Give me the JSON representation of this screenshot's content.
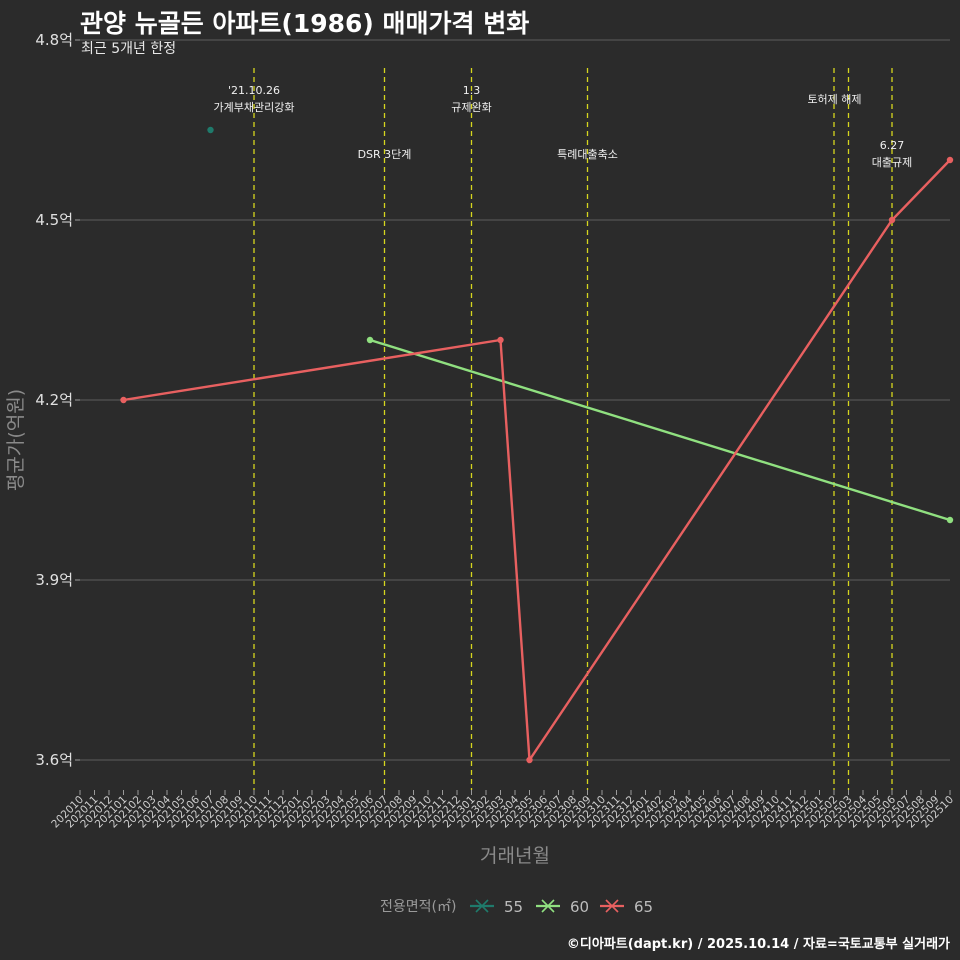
{
  "chart_data": {
    "type": "line",
    "title": "관양 뉴골든 아파트(1986) 매매가격 변화",
    "subtitle": "최근 5개년 한정",
    "xlabel": "거래년월",
    "ylabel": "평균가(억원)",
    "caption": "©디아파트(dapt.kr) / 2025.10.14 / 자료=국토교통부 실거래가",
    "ylim": [
      3.55,
      4.8
    ],
    "yticks": [
      3.6,
      3.9,
      4.2,
      4.5,
      4.8
    ],
    "ytick_labels": [
      "3.6억",
      "3.9억",
      "4.2억",
      "4.5억",
      "4.8억"
    ],
    "categories": [
      "202010",
      "202011",
      "202012",
      "202101",
      "202102",
      "202103",
      "202104",
      "202105",
      "202106",
      "202107",
      "202108",
      "202109",
      "202110",
      "202111",
      "202112",
      "202201",
      "202202",
      "202203",
      "202204",
      "202205",
      "202206",
      "202207",
      "202208",
      "202209",
      "202210",
      "202211",
      "202212",
      "202301",
      "202302",
      "202303",
      "202304",
      "202305",
      "202306",
      "202307",
      "202308",
      "202309",
      "202310",
      "202311",
      "202312",
      "202401",
      "202402",
      "202403",
      "202404",
      "202405",
      "202406",
      "202407",
      "202408",
      "202409",
      "202410",
      "202411",
      "202412",
      "202501",
      "202502",
      "202503",
      "202504",
      "202505",
      "202506",
      "202507",
      "202508",
      "202509",
      "202510"
    ],
    "legend_title": "전용면적(㎡)",
    "legend_position": "bottom",
    "series": [
      {
        "name": "55",
        "color": "#1f7a6b",
        "points": [
          [
            "202107",
            4.65
          ]
        ]
      },
      {
        "name": "60",
        "color": "#90e080",
        "points": [
          [
            "202206",
            4.3
          ],
          [
            "202510",
            4.0
          ]
        ]
      },
      {
        "name": "65",
        "color": "#e86060",
        "points": [
          [
            "202101",
            4.2
          ],
          [
            "202303",
            4.3
          ],
          [
            "202305",
            3.6
          ],
          [
            "202506",
            4.5
          ],
          [
            "202510",
            4.6
          ]
        ]
      }
    ],
    "events": [
      {
        "date": "202110",
        "lines": [
          "'21.10.26",
          "가계부채관리강화"
        ],
        "row": 1
      },
      {
        "date": "202207",
        "lines": [
          "DSR 3단계"
        ],
        "row": 2
      },
      {
        "date": "202301",
        "lines": [
          "1.3",
          "규제완화"
        ],
        "row": 1
      },
      {
        "date": "202309",
        "lines": [
          "특례대출축소"
        ],
        "row": 2
      },
      {
        "date": "202502",
        "lines": [],
        "row": 1
      },
      {
        "date": "202503",
        "lines": [
          "토허제 해제"
        ],
        "row": 1
      },
      {
        "date": "202506",
        "lines": [
          "6.27",
          "대출규제"
        ],
        "row": 2
      }
    ]
  }
}
